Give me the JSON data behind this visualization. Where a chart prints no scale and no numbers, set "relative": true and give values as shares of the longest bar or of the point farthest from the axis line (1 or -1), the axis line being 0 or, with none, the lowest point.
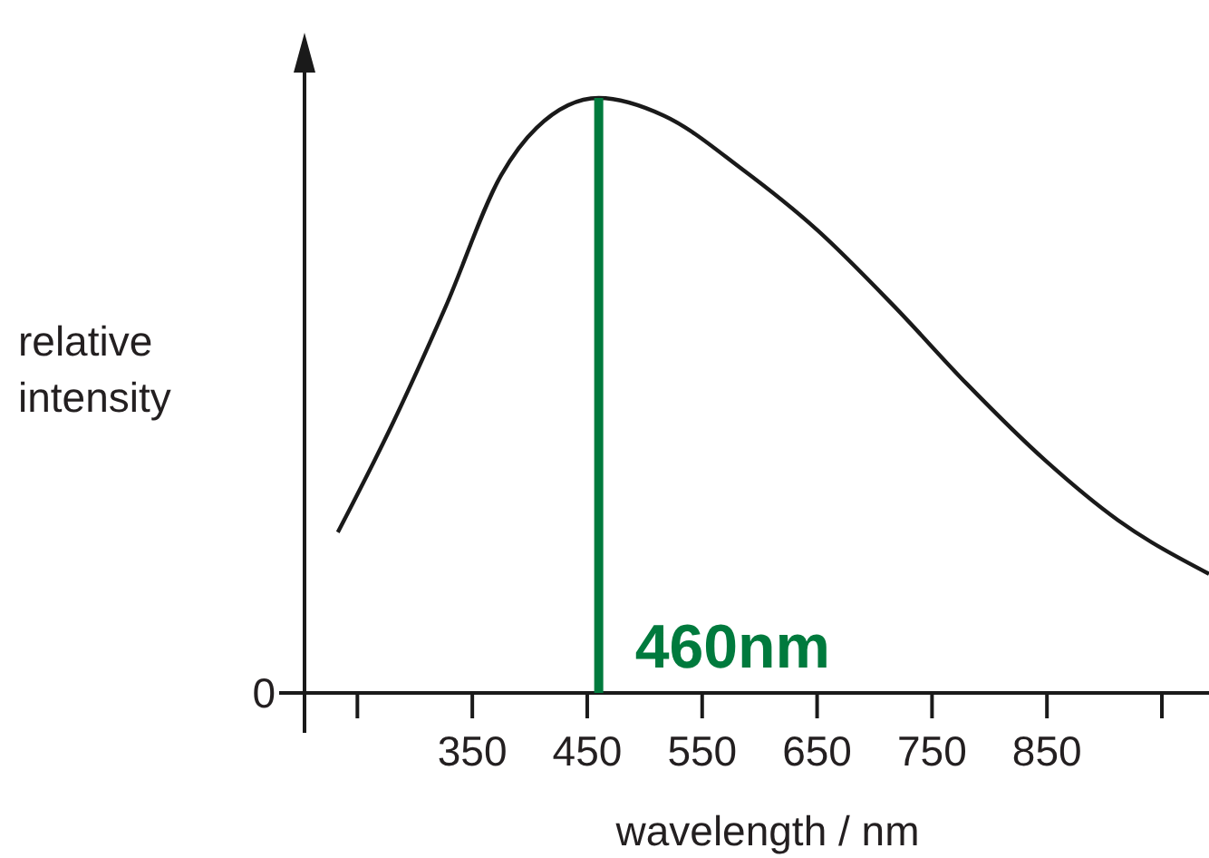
{
  "chart_data": {
    "type": "line",
    "relative": true,
    "xlabel": "wavelength / nm",
    "ylabel": "relative\nintensity",
    "x": [
      233,
      280,
      327,
      375,
      406,
      460,
      517,
      585,
      649,
      717,
      780,
      849,
      912,
      991
    ],
    "series": [
      {
        "color": "#1a1a1a",
        "values": [
          0.27,
          0.45,
          0.65,
          0.87,
          0.95,
          1,
          0.97,
          0.88,
          0.78,
          0.65,
          0.52,
          0.39,
          0.29,
          0.2
        ]
      }
    ],
    "xlim": [
      204,
      991
    ],
    "xticks": [
      {
        "value": 250,
        "label": null
      },
      350,
      450,
      550,
      650,
      750,
      850,
      {
        "value": 950,
        "label": null
      }
    ],
    "ref_lines": [
      {
        "axis": "x",
        "value": 460,
        "label": "460nm",
        "color": "#007a3d"
      }
    ],
    "annotations": [
      "0"
    ],
    "grid": false,
    "marker": "none",
    "line_style": "solid"
  }
}
